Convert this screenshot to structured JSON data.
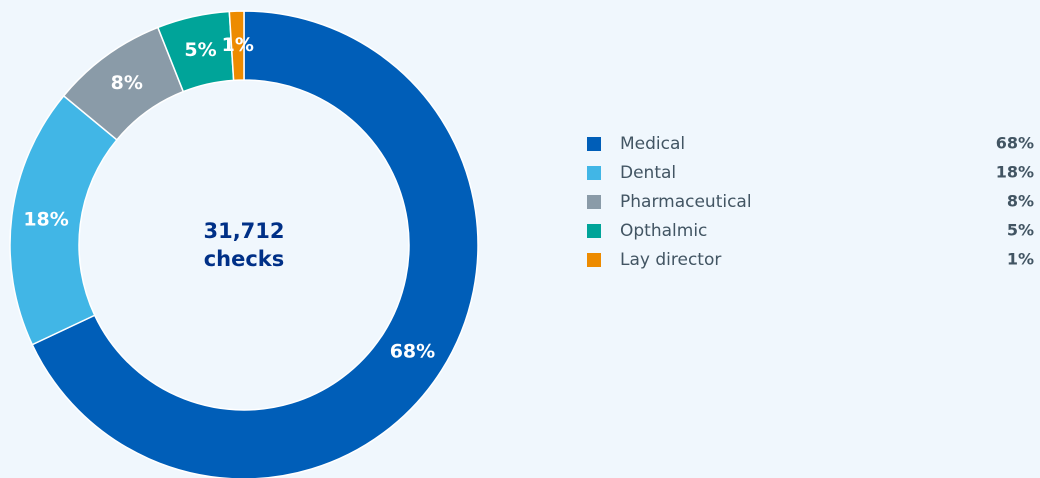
{
  "chart_data": {
    "type": "donut",
    "center_title": "31,712",
    "center_subtitle": "checks",
    "categories": [
      "Medical",
      "Dental",
      "Pharmaceutical",
      "Opthalmic",
      "Lay director"
    ],
    "values": [
      68,
      18,
      8,
      5,
      1
    ],
    "value_labels": [
      "68%",
      "18%",
      "8%",
      "5%",
      "1%"
    ],
    "colors": [
      "#005eb8",
      "#41b6e6",
      "#8a9ba8",
      "#00a499",
      "#ed8b00"
    ],
    "legend": "right"
  }
}
